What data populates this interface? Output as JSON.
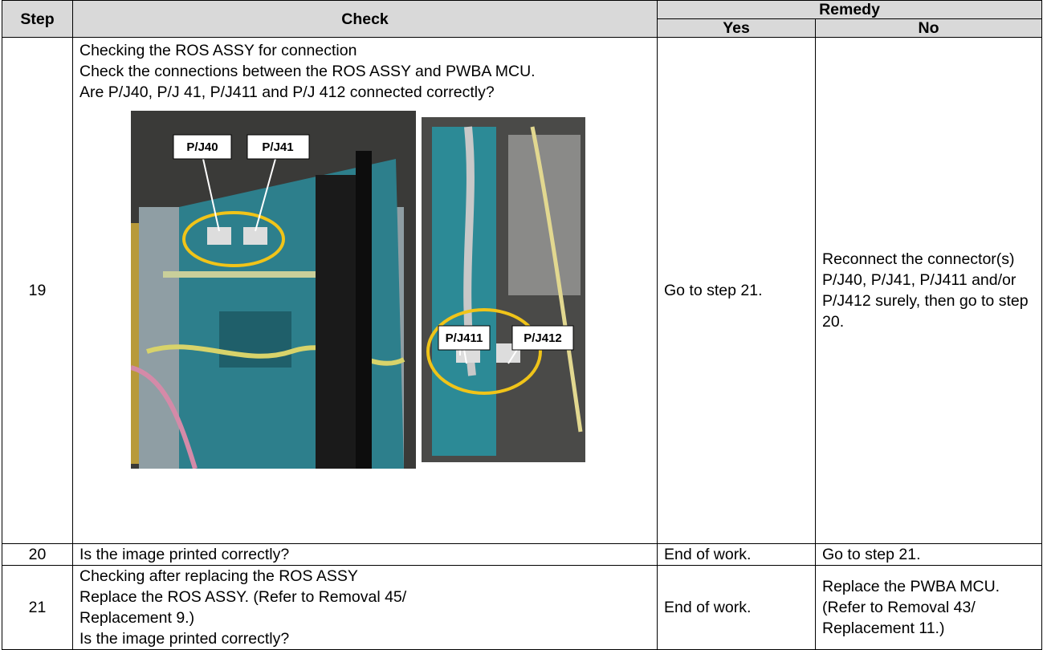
{
  "table": {
    "header": {
      "step": "Step",
      "check": "Check",
      "remedy": "Remedy",
      "yes": "Yes",
      "no": "No"
    },
    "rows": [
      {
        "step": "19",
        "check": [
          "Checking the ROS ASSY for connection",
          "Check the connections between the ROS ASSY and PWBA MCU.",
          "Are P/J40, P/J 41, P/J411 and P/J 412 connected correctly?"
        ],
        "figure_labels": [
          "P/J40",
          "P/J41",
          "P/J411",
          "P/J412"
        ],
        "yes": "Go to step 21.",
        "no": "Reconnect the connector(s) P/J40, P/J41, P/J411 and/or P/J412 surely, then go to step 20."
      },
      {
        "step": "20",
        "check": [
          "Is the image printed correctly?"
        ],
        "yes": "End of work.",
        "no": "Go to step 21."
      },
      {
        "step": "21",
        "check": [
          "Checking after replacing the ROS ASSY",
          "Replace the ROS ASSY. (Refer to Removal 45/ Replacement 9.)",
          "Is the image printed correctly?"
        ],
        "yes": "End of work.",
        "no": "Replace the PWBA MCU. (Refer to Removal 43/ Replacement 11.)"
      }
    ]
  }
}
